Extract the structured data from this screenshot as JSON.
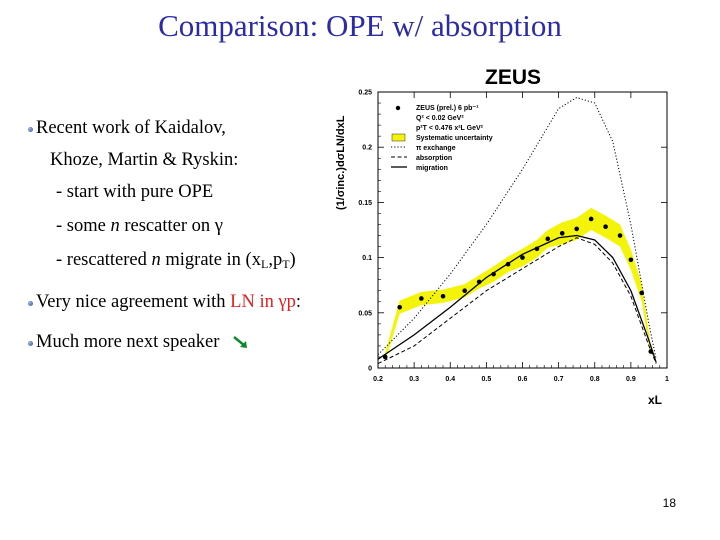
{
  "slide": {
    "title": "Comparison: OPE w/ absorption",
    "page_number": "18"
  },
  "bullets": [
    {
      "parts": [
        "Recent work of Kaidalov,"
      ]
    },
    {
      "parts": [
        "Khoze, Martin & Ryskin:"
      ]
    },
    {
      "parts": [
        "- start with pure OPE"
      ]
    },
    {
      "parts": [
        "- some ",
        "n",
        " rescatter on γ"
      ]
    },
    {
      "parts": [
        "- rescattered ",
        "n",
        " migrate in (x",
        "L",
        ",p",
        "T",
        ")"
      ]
    },
    {
      "parts": [
        "Very nice agreement with ",
        "LN in γp",
        ":"
      ]
    },
    {
      "parts": [
        "Much more next speaker"
      ]
    }
  ],
  "colors": {
    "title": "#2b2ba8",
    "highlight": "#e02020",
    "systematic_band": "#f4f40a",
    "bullet": "#2c4d9a",
    "arrow": "#0a8a2a"
  },
  "icons": {
    "bullet": "bullet-icon",
    "pointer": "green-arrow-icon"
  },
  "chart_data": {
    "type": "line",
    "experiment_label": "ZEUS",
    "ylabel": "(1/σinc.)dσLN/dxL",
    "xlabel": "xL",
    "xlim": [
      0.2,
      1.0
    ],
    "ylim": [
      0,
      0.25
    ],
    "xticks": [
      "0.2",
      "0.3",
      "0.4",
      "0.5",
      "0.6",
      "0.7",
      "0.8",
      "0.9",
      "1"
    ],
    "yticks": [
      "0",
      "0.05",
      "0.1",
      "0.15",
      "0.2",
      "0.25"
    ],
    "legend": {
      "position": "top-left",
      "entries": [
        "ZEUS (prel.) 6 pb⁻¹",
        "Q² < 0.02 GeV²",
        "p²T < 0.476 x²L GeV²",
        "Systematic uncertainty",
        "π exchange",
        "absorption",
        "migration"
      ]
    },
    "series": [
      {
        "name": "ZEUS (prel.) 6 pb⁻¹",
        "style": "points",
        "x": [
          0.22,
          0.26,
          0.32,
          0.38,
          0.44,
          0.48,
          0.52,
          0.56,
          0.6,
          0.64,
          0.67,
          0.71,
          0.75,
          0.79,
          0.83,
          0.87,
          0.9,
          0.93,
          0.955
        ],
        "y": [
          0.01,
          0.055,
          0.063,
          0.065,
          0.07,
          0.078,
          0.085,
          0.094,
          0.1,
          0.108,
          0.117,
          0.122,
          0.126,
          0.135,
          0.128,
          0.12,
          0.098,
          0.068,
          0.015
        ],
        "band_halfwidth": [
          0.004,
          0.006,
          0.006,
          0.006,
          0.006,
          0.006,
          0.007,
          0.007,
          0.008,
          0.008,
          0.008,
          0.01,
          0.01,
          0.01,
          0.01,
          0.01,
          0.009,
          0.008,
          0.005
        ]
      },
      {
        "name": "π exchange",
        "style": "dotted",
        "x": [
          0.2,
          0.3,
          0.4,
          0.5,
          0.6,
          0.7,
          0.75,
          0.8,
          0.85,
          0.9,
          0.95,
          0.97
        ],
        "y": [
          0.012,
          0.045,
          0.085,
          0.13,
          0.18,
          0.235,
          0.245,
          0.24,
          0.205,
          0.13,
          0.04,
          0.008
        ]
      },
      {
        "name": "absorption",
        "style": "dashed",
        "x": [
          0.2,
          0.3,
          0.4,
          0.5,
          0.6,
          0.7,
          0.75,
          0.8,
          0.85,
          0.9,
          0.95,
          0.97
        ],
        "y": [
          0.004,
          0.02,
          0.045,
          0.07,
          0.09,
          0.11,
          0.118,
          0.112,
          0.095,
          0.065,
          0.02,
          0.004
        ]
      },
      {
        "name": "migration",
        "style": "solid",
        "x": [
          0.2,
          0.3,
          0.4,
          0.5,
          0.6,
          0.7,
          0.75,
          0.8,
          0.85,
          0.9,
          0.95,
          0.97
        ],
        "y": [
          0.008,
          0.03,
          0.055,
          0.082,
          0.103,
          0.118,
          0.12,
          0.116,
          0.1,
          0.07,
          0.025,
          0.005
        ]
      }
    ]
  }
}
